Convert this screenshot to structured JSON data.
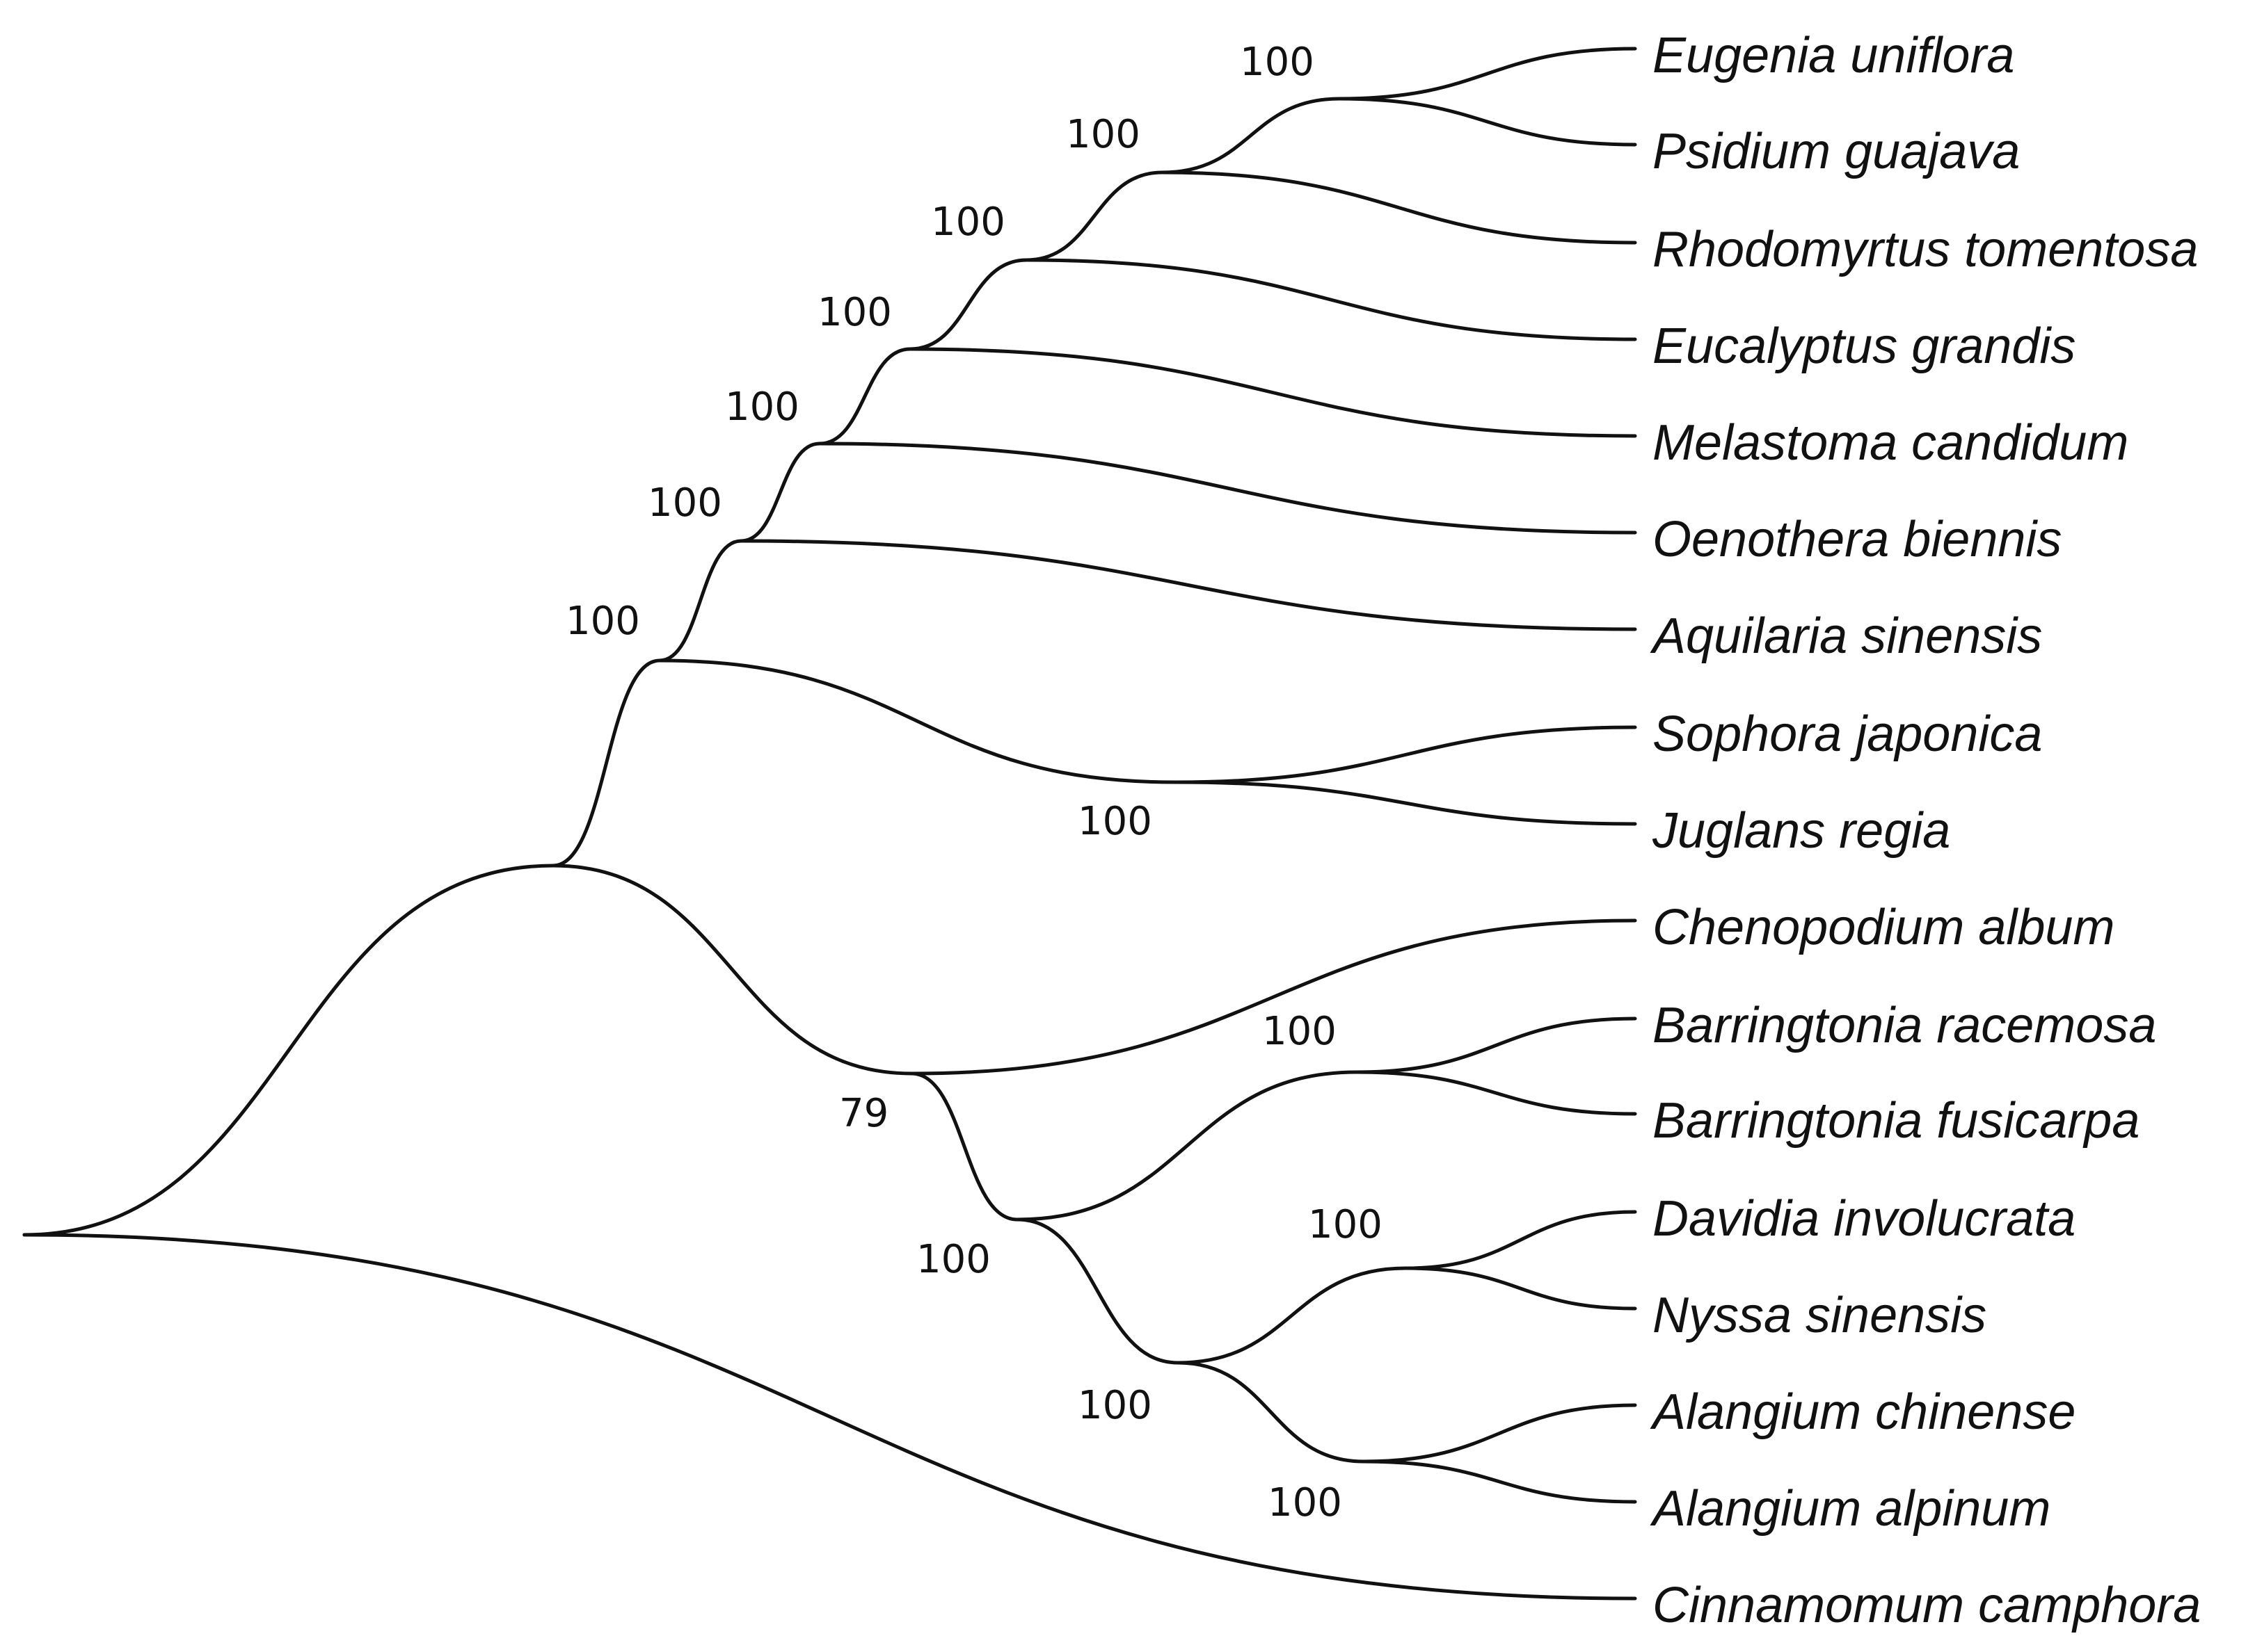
{
  "tree": {
    "taxa": [
      "Eugenia uniflora",
      "Psidium guajava",
      "Rhodomyrtus tomentosa",
      "Eucalyptus grandis",
      "Melastoma candidum",
      "Oenothera biennis",
      "Aquilaria sinensis",
      "Sophora japonica",
      "Juglans regia",
      "Chenopodium album",
      "Barringtonia racemosa",
      "Barringtonia fusicarpa",
      "Davidia involucrata",
      "Nyssa sinensis",
      "Alangium chinense",
      "Alangium alpinum",
      "Cinnamomum camphora"
    ],
    "support_values": [
      "100",
      "100",
      "100",
      "100",
      "100",
      "100",
      "100",
      "100",
      "79",
      "100",
      "100",
      "100",
      "100",
      "100"
    ],
    "newick": "((((((((Eugenia uniflora,Psidium guajava)100,Rhodomyrtus tomentosa)100,Eucalyptus grandis)100,Melastoma candidum)100,Oenothera biennis)100,Aquilaria sinensis)100,(Sophora japonica,Juglans regia)100)100,((Chenopodium album,(Barringtonia racemosa,Barringtonia fusicarpa)100)79,((Davidia involucrata,Nyssa sinensis)100,(Alangium chinense,Alangium alpinum)100)100)100),Cinnamomum camphora);",
    "line_color": "#111111"
  }
}
